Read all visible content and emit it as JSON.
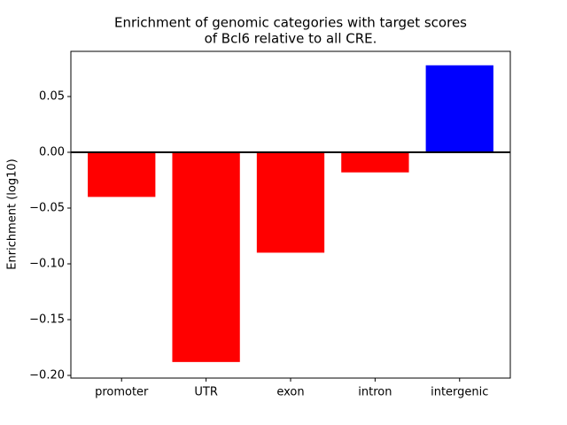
{
  "chart_data": {
    "type": "bar",
    "title": [
      "Enrichment of genomic categories with target scores",
      "of Bcl6 relative to all CRE."
    ],
    "y_label": "Enrichment (log10)",
    "categories": [
      "promoter",
      "UTR",
      "exon",
      "intron",
      "intergenic"
    ],
    "values": [
      -0.04,
      -0.188,
      -0.09,
      -0.018,
      0.078
    ],
    "colors": [
      "#ff0000",
      "#ff0000",
      "#ff0000",
      "#ff0000",
      "#0000ff"
    ],
    "ylim": [
      -0.2024,
      0.0905
    ],
    "yticks": [
      {
        "value": -0.2,
        "label": "−0.20"
      },
      {
        "value": -0.15,
        "label": "−0.15"
      },
      {
        "value": -0.1,
        "label": "−0.10"
      },
      {
        "value": -0.05,
        "label": "−0.05"
      },
      {
        "value": 0,
        "label": "0.00"
      },
      0.05
    ],
    "zero_line": true
  }
}
